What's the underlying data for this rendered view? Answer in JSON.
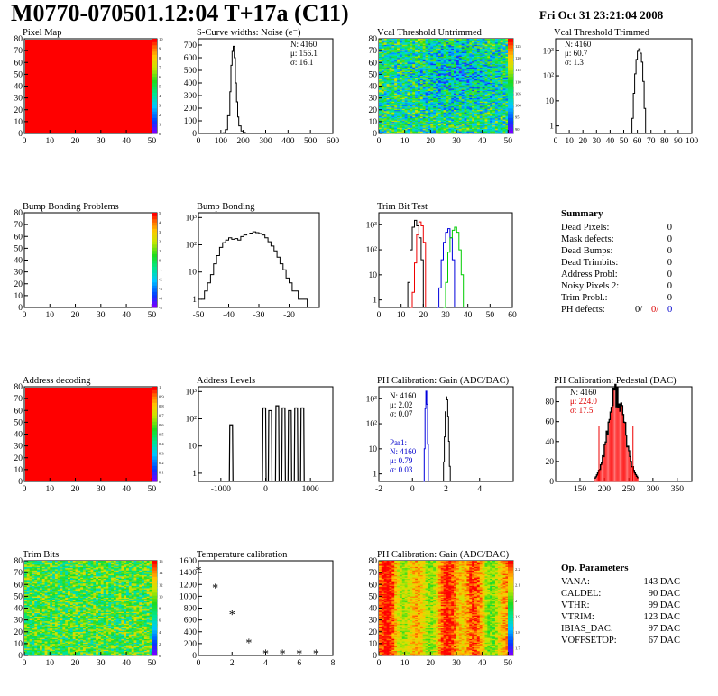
{
  "header": {
    "title": "M0770-070501.12:04 T+17a (C11)",
    "date": "Fri Oct 31 23:21:04 2008"
  },
  "colors": {
    "fill_red": "#ff0000",
    "line_red": "#ee0000",
    "line_blue": "#0000dd",
    "line_green": "#00cc00",
    "stat_red": "#dd0000",
    "stat_blue": "#0000cc"
  },
  "chart_data": [
    {
      "id": "pixel-map",
      "type": "heatmap",
      "title": "Pixel Map",
      "xlim": [
        0,
        52
      ],
      "ylim": [
        0,
        80
      ],
      "x_ticks": [
        "0",
        "10",
        "20",
        "30",
        "40",
        "50"
      ],
      "y_ticks": [
        "0",
        "10",
        "20",
        "30",
        "40",
        "50",
        "60",
        "70",
        "80"
      ],
      "z_ticks": [
        "0",
        "1",
        "2",
        "3",
        "4",
        "5",
        "6",
        "7",
        "8",
        "9",
        "10"
      ],
      "zlim": [
        0,
        10
      ],
      "uniform_value": 10
    },
    {
      "id": "scurve-noise",
      "type": "line",
      "title": "S-Curve widths: Noise (e⁻)",
      "xlim": [
        0,
        600
      ],
      "ylim": [
        0,
        750
      ],
      "x_ticks": [
        "0",
        "100",
        "200",
        "300",
        "400",
        "500",
        "600"
      ],
      "y_ticks": [
        "0",
        "100",
        "200",
        "300",
        "400",
        "500",
        "600",
        "700"
      ],
      "stats": [
        "N: 4160",
        "μ: 156.1",
        "σ: 16.1"
      ],
      "x": [
        100,
        110,
        120,
        130,
        140,
        145,
        150,
        155,
        160,
        165,
        170,
        175,
        180,
        190,
        200,
        210,
        220,
        230,
        240
      ],
      "y": [
        0,
        5,
        30,
        140,
        330,
        540,
        650,
        690,
        600,
        400,
        250,
        130,
        60,
        20,
        8,
        3,
        2,
        0,
        0
      ]
    },
    {
      "id": "vcal-untrimmed",
      "type": "heatmap",
      "title": "Vcal Threshold Untrimmed",
      "xlim": [
        0,
        52
      ],
      "ylim": [
        0,
        80
      ],
      "x_ticks": [
        "0",
        "10",
        "20",
        "30",
        "40",
        "50"
      ],
      "y_ticks": [
        "0",
        "10",
        "20",
        "30",
        "40",
        "50",
        "60",
        "70",
        "80"
      ],
      "z_ticks": [
        "90",
        "95",
        "100",
        "105",
        "110",
        "115",
        "120",
        "125"
      ],
      "zlim": [
        88,
        128
      ]
    },
    {
      "id": "vcal-trimmed",
      "type": "line",
      "title": "Vcal Threshold Trimmed",
      "log_y": true,
      "xlim": [
        0,
        100
      ],
      "ylim": [
        0.5,
        3000
      ],
      "x_ticks": [
        "0",
        "10",
        "20",
        "30",
        "40",
        "50",
        "60",
        "70",
        "80",
        "90",
        "100"
      ],
      "y_ticks": [
        "1",
        "10",
        "10²",
        "10³"
      ],
      "stats": [
        "N: 4160",
        "μ: 60.7",
        "σ:  1.3"
      ],
      "x": [
        55,
        56,
        57,
        58,
        59,
        60,
        61,
        62,
        63,
        64,
        65,
        66
      ],
      "y": [
        0,
        2,
        20,
        120,
        450,
        950,
        1200,
        800,
        350,
        60,
        5,
        0
      ]
    },
    {
      "id": "bump-problems",
      "type": "heatmap",
      "title": "Bump Bonding Problems",
      "xlim": [
        0,
        52
      ],
      "ylim": [
        0,
        80
      ],
      "x_ticks": [
        "0",
        "10",
        "20",
        "30",
        "40",
        "50"
      ],
      "y_ticks": [
        "0",
        "10",
        "20",
        "30",
        "40",
        "50",
        "60",
        "70",
        "80"
      ],
      "z_ticks": [
        "-5",
        "-4",
        "-3",
        "-2",
        "-1",
        "0",
        "1",
        "2",
        "3",
        "4",
        "5"
      ],
      "zlim": [
        -5,
        5
      ],
      "empty": true
    },
    {
      "id": "bump-bonding",
      "type": "line",
      "title": "Bump Bonding",
      "log_y": true,
      "xlim": [
        -50,
        -10
      ],
      "ylim": [
        0.5,
        1500
      ],
      "x_ticks": [
        "-50",
        "-40",
        "-30",
        "-20"
      ],
      "y_ticks": [
        "1",
        "10",
        "10²",
        "10³"
      ],
      "x": [
        -49,
        -48,
        -47,
        -46,
        -45,
        -44,
        -43,
        -42,
        -41,
        -40,
        -39,
        -38,
        -37,
        -36,
        -35,
        -34,
        -33,
        -32,
        -31,
        -30,
        -29,
        -28,
        -27,
        -26,
        -25,
        -24,
        -23,
        -22,
        -21,
        -20,
        -19,
        -18,
        -17,
        -16,
        -15,
        -14
      ],
      "y": [
        1,
        2,
        4,
        8,
        20,
        40,
        80,
        120,
        150,
        180,
        160,
        170,
        150,
        200,
        230,
        250,
        270,
        300,
        280,
        260,
        230,
        180,
        130,
        90,
        60,
        35,
        20,
        12,
        6,
        4,
        2,
        2,
        1,
        1,
        1,
        0
      ]
    },
    {
      "id": "trim-bit-test",
      "type": "line",
      "title": "Trim Bit Test",
      "log_y": true,
      "xlim": [
        0,
        60
      ],
      "ylim": [
        0.5,
        3000
      ],
      "x_ticks": [
        "0",
        "10",
        "20",
        "30",
        "40",
        "50",
        "60"
      ],
      "y_ticks": [
        "1",
        "10",
        "10²",
        "10³"
      ],
      "series": [
        {
          "color": "black",
          "x": [
            12,
            13,
            14,
            15,
            16,
            17,
            18,
            19,
            20
          ],
          "y": [
            0,
            5,
            100,
            800,
            1500,
            900,
            300,
            40,
            0
          ]
        },
        {
          "color": "red",
          "x": [
            14,
            15,
            16,
            17,
            18,
            19,
            20,
            21
          ],
          "y": [
            0,
            2,
            30,
            400,
            1300,
            900,
            200,
            0
          ]
        },
        {
          "color": "blue",
          "x": [
            26,
            27,
            28,
            29,
            30,
            31,
            32,
            33,
            34
          ],
          "y": [
            0,
            3,
            40,
            200,
            500,
            700,
            300,
            40,
            0
          ]
        },
        {
          "color": "green",
          "x": [
            29,
            30,
            31,
            32,
            33,
            34,
            35,
            36,
            37,
            38
          ],
          "y": [
            0,
            5,
            80,
            300,
            600,
            800,
            500,
            100,
            10,
            0
          ]
        }
      ]
    },
    {
      "id": "address-decoding",
      "type": "heatmap",
      "title": "Address decoding",
      "xlim": [
        0,
        52
      ],
      "ylim": [
        0,
        80
      ],
      "x_ticks": [
        "0",
        "10",
        "20",
        "30",
        "40",
        "50"
      ],
      "y_ticks": [
        "0",
        "10",
        "20",
        "30",
        "40",
        "50",
        "60",
        "70",
        "80"
      ],
      "z_ticks": [
        "0",
        "0.1",
        "0.2",
        "0.3",
        "0.4",
        "0.5",
        "0.6",
        "0.7",
        "0.8",
        "0.9",
        "1"
      ],
      "zlim": [
        0,
        1
      ],
      "uniform_value": 1
    },
    {
      "id": "address-levels",
      "type": "line",
      "title": "Address Levels",
      "log_y": true,
      "xlim": [
        -1500,
        1500
      ],
      "ylim": [
        0.5,
        1500
      ],
      "x_ticks": [
        "-1000",
        "0",
        "1000"
      ],
      "y_ticks": [
        "1",
        "10",
        "10²",
        "10³"
      ],
      "peaks": [
        -770,
        -30,
        100,
        260,
        400,
        540,
        680,
        820
      ],
      "peak_heights": [
        60,
        250,
        200,
        300,
        250,
        200,
        250,
        250
      ]
    },
    {
      "id": "ph-gain",
      "type": "line",
      "title": "PH Calibration: Gain (ADC/DAC)",
      "log_y": true,
      "xlim": [
        -2,
        6
      ],
      "ylim": [
        0.5,
        3000
      ],
      "x_ticks": [
        "-2",
        "0",
        "2",
        "4"
      ],
      "y_ticks": [
        "1",
        "10",
        "10²",
        "10³"
      ],
      "stats": [
        "N: 4160",
        "μ: 2.02",
        "σ: 0.07"
      ],
      "par1_stats": [
        "Par1:",
        "N: 4160",
        "μ: 0.79",
        "σ: 0.03"
      ],
      "series": [
        {
          "color": "black",
          "x": [
            1.8,
            1.85,
            1.9,
            1.95,
            2.0,
            2.05,
            2.1,
            2.15,
            2.2,
            2.25
          ],
          "y": [
            0,
            3,
            30,
            300,
            1200,
            900,
            200,
            20,
            2,
            0
          ]
        },
        {
          "color": "blue",
          "x": [
            0.65,
            0.7,
            0.75,
            0.8,
            0.85,
            0.9,
            0.95
          ],
          "y": [
            0,
            10,
            400,
            2000,
            600,
            15,
            0
          ]
        }
      ]
    },
    {
      "id": "ph-pedestal",
      "type": "bar",
      "title": "PH Calibration: Pedestal (DAC)",
      "xlim": [
        100,
        380
      ],
      "ylim": [
        0,
        95
      ],
      "x_ticks": [
        "150",
        "200",
        "250",
        "300",
        "350"
      ],
      "y_ticks": [
        "0",
        "20",
        "40",
        "60",
        "80"
      ],
      "stats": [
        "N: 4160",
        "μ: 224.0",
        "σ: 17.5"
      ],
      "mean": 224.0,
      "sigma": 17.5,
      "peak": 88,
      "bin_edges": [
        180,
        270
      ],
      "fit_markers": [
        189,
        259
      ]
    },
    {
      "id": "trim-bits",
      "type": "heatmap",
      "title": "Trim Bits",
      "xlim": [
        0,
        52
      ],
      "ylim": [
        0,
        80
      ],
      "x_ticks": [
        "0",
        "10",
        "20",
        "30",
        "40",
        "50"
      ],
      "y_ticks": [
        "0",
        "10",
        "20",
        "30",
        "40",
        "50",
        "60",
        "70",
        "80"
      ],
      "z_ticks": [
        "0",
        "2",
        "4",
        "6",
        "8",
        "10",
        "12",
        "14",
        "16"
      ],
      "zlim": [
        0,
        16
      ]
    },
    {
      "id": "temperature-calibration",
      "type": "scatter",
      "title": "Temperature calibration",
      "xlim": [
        0,
        8
      ],
      "ylim": [
        0,
        1600
      ],
      "x_ticks": [
        "0",
        "2",
        "4",
        "6",
        "8"
      ],
      "y_ticks": [
        "0",
        "200",
        "400",
        "600",
        "800",
        "1000",
        "1200",
        "1400",
        "1600"
      ],
      "x": [
        0,
        1,
        2,
        3,
        4,
        5,
        6,
        7
      ],
      "y": [
        1450,
        1150,
        700,
        220,
        40,
        40,
        40,
        40
      ]
    },
    {
      "id": "ph-gain-map",
      "type": "heatmap",
      "title": "PH Calibration: Gain (ADC/DAC)",
      "xlim": [
        0,
        52
      ],
      "ylim": [
        0,
        80
      ],
      "x_ticks": [
        "0",
        "10",
        "20",
        "30",
        "40",
        "50"
      ],
      "y_ticks": [
        "0",
        "10",
        "20",
        "30",
        "40",
        "50",
        "60",
        "70",
        "80"
      ],
      "z_ticks": [
        "1.7",
        "1.8",
        "1.9",
        "2",
        "2.1",
        "2.2"
      ],
      "zlim": [
        1.65,
        2.25
      ]
    }
  ],
  "summary": {
    "title": "Summary",
    "rows": [
      {
        "label": "Dead Pixels:",
        "value": "0"
      },
      {
        "label": "Mask defects:",
        "value": "0"
      },
      {
        "label": "Dead Bumps:",
        "value": "0"
      },
      {
        "label": "Dead Trimbits:",
        "value": "0"
      },
      {
        "label": "Address Probl:",
        "value": "0"
      },
      {
        "label": "Noisy Pixels 2:",
        "value": "0"
      },
      {
        "label": "Trim Probl.:",
        "value": "0"
      }
    ],
    "ph_defects": {
      "label": "PH defects:",
      "v1": "0/",
      "v2": "0/",
      "v3": "0"
    }
  },
  "op_parameters": {
    "title": "Op. Parameters",
    "rows": [
      {
        "label": "VANA:",
        "value": "143 DAC"
      },
      {
        "label": "CALDEL:",
        "value": "90 DAC"
      },
      {
        "label": "VTHR:",
        "value": "99 DAC"
      },
      {
        "label": "VTRIM:",
        "value": "123 DAC"
      },
      {
        "label": "IBIAS_DAC:",
        "value": "97 DAC"
      },
      {
        "label": "VOFFSETOP:",
        "value": "67 DAC"
      }
    ]
  }
}
